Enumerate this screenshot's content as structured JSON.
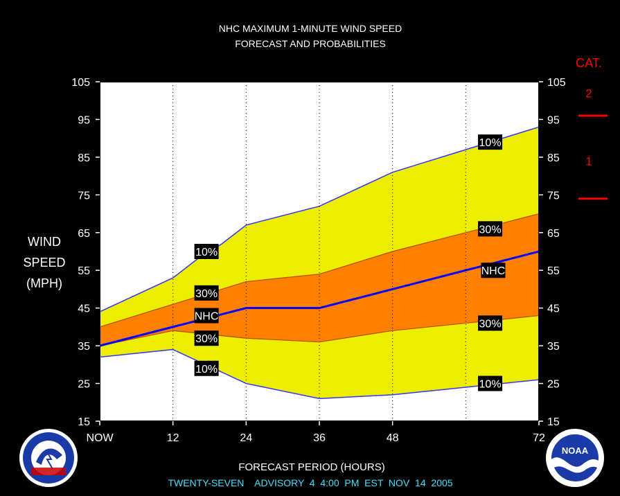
{
  "colors": {
    "background": "#000000",
    "plot_bg": "#ffffff",
    "band_outer": "#eeee00",
    "band_inner": "#ff7f00",
    "forecast_line": "#0000ff",
    "category_marker": "#ff0000",
    "footer_text": "#40e0ff",
    "text": "#ffffff"
  },
  "chart_data": {
    "type": "area",
    "title": "NHC MAXIMUM 1-MINUTE WIND SPEED",
    "subtitle": "FORECAST AND PROBABILITIES",
    "ylabel_lines": [
      "WIND",
      "SPEED",
      "(MPH)"
    ],
    "xlabel": "FORECAST PERIOD (HOURS)",
    "footer": "TWENTY-SEVEN    ADVISORY  4  4:00  PM  EST  NOV  14  2005",
    "ylim": [
      15,
      105
    ],
    "xlim": [
      0,
      72
    ],
    "yticks": [
      15,
      25,
      35,
      45,
      55,
      65,
      75,
      85,
      95,
      105
    ],
    "xticks": [
      {
        "x": 0,
        "label": "NOW"
      },
      {
        "x": 12,
        "label": "12"
      },
      {
        "x": 24,
        "label": "24"
      },
      {
        "x": 36,
        "label": "36"
      },
      {
        "x": 48,
        "label": "48"
      },
      {
        "x": 72,
        "label": "72"
      }
    ],
    "grid_x": [
      12,
      24,
      36,
      48,
      60
    ],
    "series": [
      {
        "name": "10%",
        "role": "upper_outer",
        "x": [
          0,
          12,
          16,
          20,
          24,
          36,
          48,
          60,
          72
        ],
        "values": [
          44,
          53,
          58,
          62,
          67,
          72,
          81,
          87,
          93
        ]
      },
      {
        "name": "30%",
        "role": "upper_inner",
        "x": [
          0,
          12,
          24,
          36,
          48,
          60,
          72
        ],
        "values": [
          40,
          46,
          52,
          54,
          60,
          65,
          70
        ]
      },
      {
        "name": "NHC",
        "role": "forecast",
        "x": [
          0,
          12,
          24,
          36,
          48,
          60,
          72
        ],
        "values": [
          35,
          40,
          45,
          45,
          50,
          55,
          60
        ]
      },
      {
        "name": "30%",
        "role": "lower_inner",
        "x": [
          0,
          12,
          24,
          36,
          48,
          60,
          72
        ],
        "values": [
          35,
          39,
          37,
          36,
          39,
          41,
          43
        ]
      },
      {
        "name": "10%",
        "role": "lower_outer",
        "x": [
          0,
          12,
          16,
          20,
          24,
          36,
          48,
          60,
          72
        ],
        "values": [
          32,
          34,
          31,
          28,
          25,
          21,
          22,
          24,
          26
        ]
      }
    ],
    "annotations": [
      {
        "text": "10%",
        "x": 17.5,
        "y": 60
      },
      {
        "text": "30%",
        "x": 17.5,
        "y": 49
      },
      {
        "text": "NHC",
        "x": 17.5,
        "y": 43
      },
      {
        "text": "30%",
        "x": 17.5,
        "y": 37
      },
      {
        "text": "10%",
        "x": 17.5,
        "y": 29
      },
      {
        "text": "10%",
        "x": 64,
        "y": 89
      },
      {
        "text": "30%",
        "x": 64,
        "y": 66
      },
      {
        "text": "NHC",
        "x": 64.5,
        "y": 55
      },
      {
        "text": "30%",
        "x": 64,
        "y": 41
      },
      {
        "text": "10%",
        "x": 64,
        "y": 25
      }
    ],
    "category_scale": {
      "title": "CAT.",
      "labels": [
        {
          "text": "2",
          "y": 102
        },
        {
          "text": "1",
          "y": 84
        }
      ],
      "markers": [
        96,
        74
      ]
    }
  }
}
